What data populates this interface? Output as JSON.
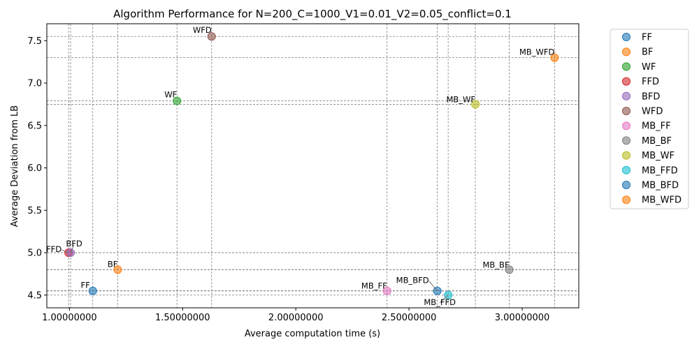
{
  "chart_data": {
    "type": "scatter",
    "title": "Algorithm Performance for N=200_C=1000_V1=0.01_V2=0.05_conflict=0.1",
    "xlabel": "Average computation time (s)",
    "ylabel": "Average Deviation from LB",
    "xlim": [
      0.9,
      3.25
    ],
    "ylim": [
      4.35,
      7.7
    ],
    "x_ticks": [
      1.0,
      1.5,
      2.0,
      2.5,
      3.0
    ],
    "x_tick_labels": [
      "1.00000000",
      "1.50000000",
      "2.00000000",
      "2.50000000",
      "3.00000000"
    ],
    "y_ticks": [
      4.5,
      5.0,
      5.5,
      6.0,
      6.5,
      7.0,
      7.5
    ],
    "y_tick_labels": [
      "4.5",
      "5.0",
      "5.5",
      "6.0",
      "6.5",
      "7.0",
      "7.5"
    ],
    "grid": "dashed lines at each point's x and y",
    "legend_position": "outside right, top",
    "series": [
      {
        "name": "FF",
        "x": 1.103,
        "y": 4.55,
        "color": "#1f77b4",
        "label": "FF"
      },
      {
        "name": "BF",
        "x": 1.213,
        "y": 4.8,
        "color": "#ff7f0e",
        "label": "BF"
      },
      {
        "name": "WF",
        "x": 1.475,
        "y": 6.79,
        "color": "#2ca02c",
        "label": "WF"
      },
      {
        "name": "FFD",
        "x": 0.996,
        "y": 5.0,
        "color": "#d62728",
        "label": "FFD"
      },
      {
        "name": "BFD",
        "x": 1.005,
        "y": 5.0,
        "color": "#9467bd",
        "label": "BFD"
      },
      {
        "name": "WFD",
        "x": 1.628,
        "y": 7.55,
        "color": "#8c564b",
        "label": "WFD"
      },
      {
        "name": "MB_FF",
        "x": 2.403,
        "y": 4.55,
        "color": "#e377c2",
        "label": "MB_FF"
      },
      {
        "name": "MB_BF",
        "x": 2.943,
        "y": 4.8,
        "color": "#7f7f7f",
        "label": "MB_BF"
      },
      {
        "name": "MB_WF",
        "x": 2.793,
        "y": 6.75,
        "color": "#bcbd22",
        "label": "MB_WF"
      },
      {
        "name": "MB_FFD",
        "x": 2.673,
        "y": 4.5,
        "color": "#17becf",
        "label": "MB_FFD"
      },
      {
        "name": "MB_BFD",
        "x": 2.625,
        "y": 4.55,
        "color": "#1f77b4",
        "label": "MB_BFD"
      },
      {
        "name": "MB_WFD",
        "x": 3.143,
        "y": 7.3,
        "color": "#ff7f0e",
        "label": "MB_WFD"
      }
    ]
  }
}
